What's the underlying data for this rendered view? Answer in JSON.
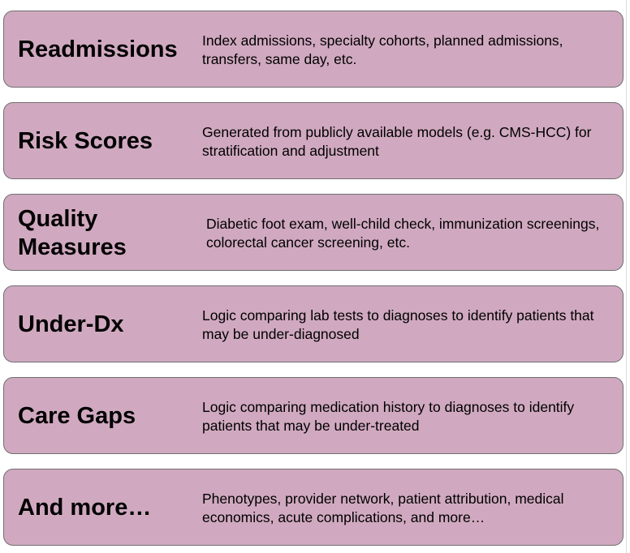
{
  "cards": [
    {
      "title": "Readmissions",
      "description": "Index admissions, specialty cohorts, planned admissions, transfers, same day, etc."
    },
    {
      "title": "Risk Scores",
      "description": "Generated from publicly available models (e.g. CMS-HCC) for stratification and adjustment"
    },
    {
      "title": "Quality Measures",
      "description": "Diabetic foot exam, well-child check, immunization screenings, colorectal cancer screening, etc."
    },
    {
      "title": "Under-Dx",
      "description": "Logic comparing lab tests to diagnoses to identify patients that may be under-diagnosed"
    },
    {
      "title": "Care Gaps",
      "description": "Logic comparing medication history to diagnoses to identify patients that may be under-treated"
    },
    {
      "title": "And more…",
      "description": "Phenotypes, provider network, patient attribution, medical economics, acute complications, and more…"
    }
  ],
  "colors": {
    "card_fill": "#d0a9c0",
    "card_border": "#6f6f6f",
    "text": "#000000"
  }
}
